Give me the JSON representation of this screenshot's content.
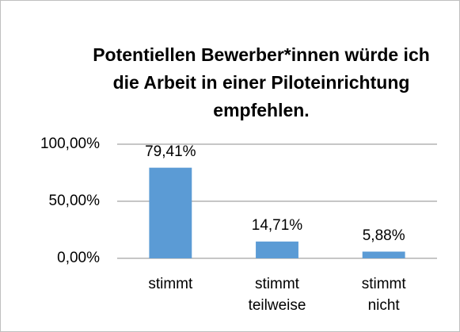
{
  "chart_data": {
    "type": "bar",
    "title": "Potentiellen Bewerber*innen würde ich die Arbeit in einer Piloteinrichtung empfehlen.",
    "categories": [
      "stimmt",
      "stimmt teilweise",
      "stimmt nicht"
    ],
    "values": [
      79.41,
      14.71,
      5.88
    ],
    "value_labels": [
      "79,41%",
      "14,71%",
      "5,88%"
    ],
    "color": "#5b9bd5",
    "ylim": [
      0,
      100
    ],
    "yticks": [
      {
        "value": 0,
        "label": "0,00%"
      },
      {
        "value": 50,
        "label": "50,00%"
      },
      {
        "value": 100,
        "label": "100,00%"
      }
    ],
    "grid": true
  }
}
